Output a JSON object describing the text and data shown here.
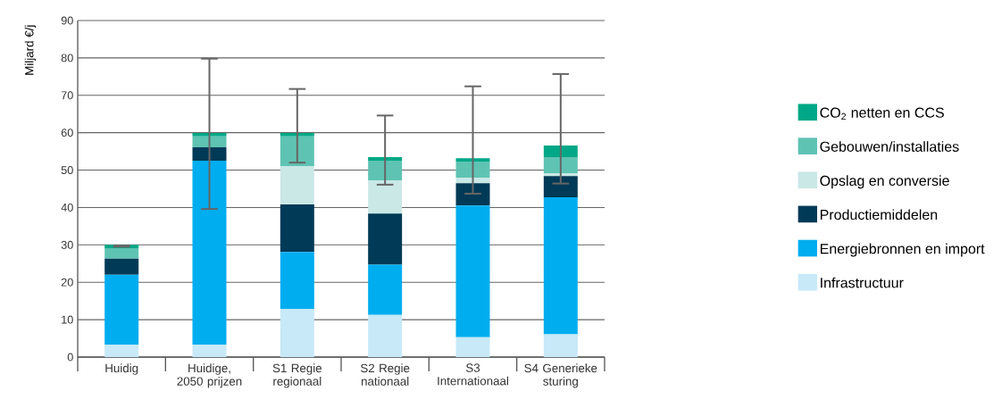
{
  "chart_data": {
    "type": "bar",
    "stacked": true,
    "ylabel": "Miljard €/j",
    "categories": [
      "Huidig",
      "Huidige, 2050 prijzen",
      "S1 Regie regionaal",
      "S2 Regie nationaal",
      "S3 Internationaal",
      "S4 Generieke sturing"
    ],
    "series": [
      {
        "name": "Infrastructuur",
        "color": "#c7e9f8",
        "values": [
          3.3,
          3.3,
          12.9,
          11.3,
          5.3,
          6.1
        ]
      },
      {
        "name": "Energiebronnen en import",
        "color": "#00adef",
        "values": [
          18.7,
          49.2,
          15.2,
          13.4,
          35.2,
          36.6
        ]
      },
      {
        "name": "Productiemiddelen",
        "color": "#003a57",
        "values": [
          4.3,
          3.6,
          12.7,
          13.7,
          6.0,
          5.7
        ]
      },
      {
        "name": "Opslag en conversie",
        "color": "#c9e8e6",
        "values": [
          0,
          0,
          10.3,
          8.8,
          1.5,
          0.8
        ]
      },
      {
        "name": "Gebouwen/installaties",
        "color": "#5fc3b3",
        "values": [
          2.8,
          2.9,
          7.9,
          5.3,
          4.3,
          4.3
        ]
      },
      {
        "name": "CO$_{2}$ netten en CCS",
        "color": "#00a887",
        "values": [
          0.9,
          0.9,
          0.9,
          1.0,
          0.9,
          3.1
        ],
        "errors": [
          [
            29.5,
            29.8
          ],
          [
            39.6,
            79.8
          ],
          [
            52.0,
            71.7
          ],
          [
            46.1,
            64.6
          ],
          [
            43.7,
            72.4
          ],
          [
            46.4,
            75.7
          ]
        ]
      }
    ],
    "ylim": [
      0,
      90
    ],
    "yticks": [
      0,
      10,
      20,
      30,
      40,
      50,
      60,
      70,
      80,
      90
    ],
    "grid": "y",
    "legend": "right"
  }
}
